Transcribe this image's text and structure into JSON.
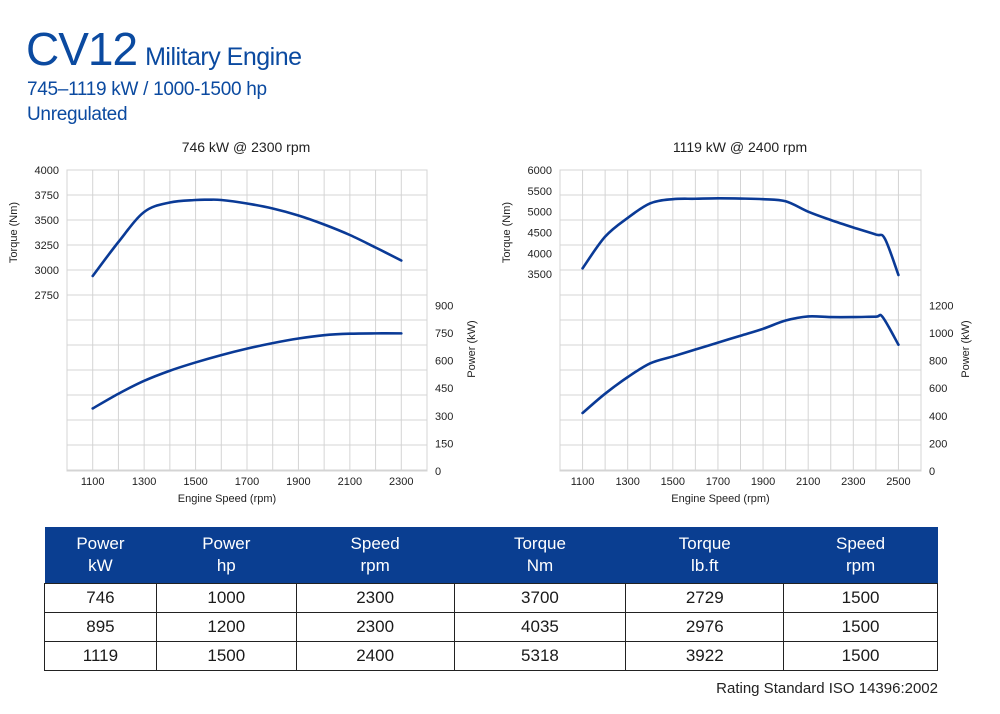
{
  "header": {
    "model": "CV12",
    "subtitle": "Military Engine",
    "range": "745–1119 kW / 1000-1500 hp",
    "emissions": "Unregulated"
  },
  "chart_data": [
    {
      "type": "line",
      "title": "746 kW @ 2300 rpm",
      "xlabel": "Engine Speed (rpm)",
      "xticks": [
        1100,
        1300,
        1500,
        1700,
        1900,
        2100,
        2300
      ],
      "xlim": [
        1000,
        2400
      ],
      "torque_axis": {
        "label": "Torque (Nm)",
        "ticks": [
          2750,
          3000,
          3250,
          3500,
          3750,
          4000
        ],
        "lim": [
          2750,
          4000
        ]
      },
      "power_axis": {
        "label": "Power (kW)",
        "ticks": [
          0,
          150,
          300,
          450,
          600,
          750,
          900
        ],
        "lim": [
          0,
          1000
        ]
      },
      "series": [
        {
          "axis": "torque",
          "x": [
            1100,
            1200,
            1300,
            1400,
            1500,
            1550,
            1600,
            1700,
            1800,
            1900,
            2000,
            2100,
            2200,
            2300
          ],
          "y": [
            2940,
            3280,
            3580,
            3675,
            3700,
            3703,
            3700,
            3665,
            3615,
            3545,
            3455,
            3350,
            3225,
            3095
          ]
        },
        {
          "axis": "power",
          "x": [
            1100,
            1200,
            1300,
            1400,
            1500,
            1600,
            1700,
            1800,
            1900,
            2000,
            2100,
            2200,
            2300
          ],
          "y": [
            340,
            420,
            490,
            545,
            590,
            630,
            665,
            695,
            720,
            738,
            746,
            748,
            748
          ]
        }
      ],
      "grid": true
    },
    {
      "type": "line",
      "title": "1119 kW @ 2400 rpm",
      "xlabel": "Engine Speed (rpm)",
      "xticks": [
        1100,
        1300,
        1500,
        1700,
        1900,
        2100,
        2300,
        2500
      ],
      "xlim": [
        1000,
        2600
      ],
      "torque_axis": {
        "label": "Torque (Nm)",
        "ticks": [
          3500,
          4000,
          4500,
          5000,
          5500,
          6000
        ],
        "lim": [
          3000,
          6000
        ]
      },
      "power_axis": {
        "label": "Power (kW)",
        "ticks": [
          0,
          200,
          400,
          600,
          800,
          1000,
          1200
        ],
        "lim": [
          0,
          1333
        ]
      },
      "series": [
        {
          "axis": "torque",
          "x": [
            1100,
            1200,
            1300,
            1400,
            1500,
            1600,
            1700,
            1800,
            1900,
            2000,
            2100,
            2200,
            2300,
            2400,
            2440,
            2500
          ],
          "y": [
            3640,
            4400,
            4850,
            5200,
            5300,
            5310,
            5320,
            5315,
            5300,
            5250,
            5000,
            4800,
            4620,
            4450,
            4350,
            3480
          ]
        },
        {
          "axis": "power",
          "x": [
            1100,
            1200,
            1300,
            1400,
            1500,
            1600,
            1700,
            1800,
            1900,
            2000,
            2100,
            2200,
            2300,
            2400,
            2430,
            2500
          ],
          "y": [
            420,
            560,
            680,
            780,
            830,
            880,
            930,
            980,
            1030,
            1090,
            1120,
            1115,
            1115,
            1118,
            1115,
            915
          ]
        }
      ],
      "grid": true
    }
  ],
  "table": {
    "headers": [
      [
        "Power",
        "kW"
      ],
      [
        "Power",
        "hp"
      ],
      [
        "Speed",
        "rpm"
      ],
      [
        "Torque",
        "Nm"
      ],
      [
        "Torque",
        "lb.ft"
      ],
      [
        "Speed",
        "rpm"
      ]
    ],
    "rows": [
      [
        "746",
        "1000",
        "2300",
        "3700",
        "2729",
        "1500"
      ],
      [
        "895",
        "1200",
        "2300",
        "4035",
        "2976",
        "1500"
      ],
      [
        "1119",
        "1500",
        "2400",
        "5318",
        "3922",
        "1500"
      ]
    ]
  },
  "footer": {
    "rating": "Rating Standard ISO 14396:2002"
  },
  "colors": {
    "brand": "#0b4aa0",
    "line": "#0a3a96",
    "table_header": "#0a3e91",
    "grid": "#d4d4d4"
  }
}
